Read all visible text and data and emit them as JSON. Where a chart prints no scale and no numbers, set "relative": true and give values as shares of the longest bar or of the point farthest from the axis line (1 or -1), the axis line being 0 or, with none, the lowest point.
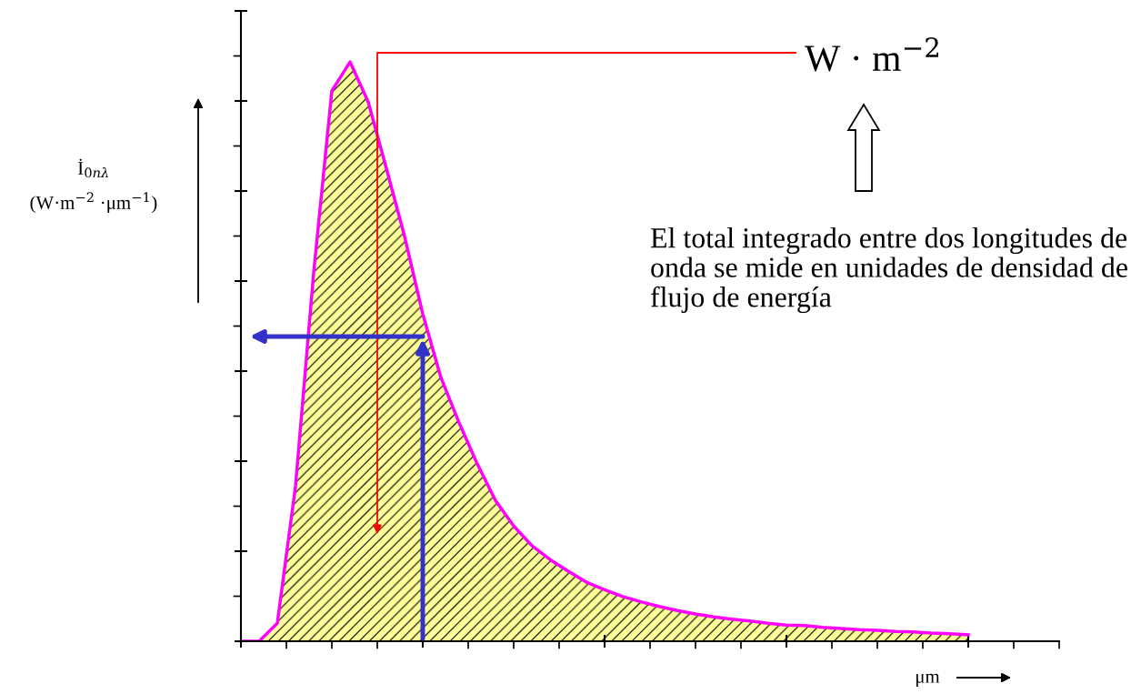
{
  "chart_data": {
    "type": "area",
    "relative": true,
    "categories": [
      null,
      null,
      null,
      null,
      null,
      null,
      null,
      null,
      null,
      null,
      null,
      null,
      null,
      null,
      null,
      null,
      null,
      null,
      null,
      null,
      null,
      null,
      null,
      null,
      null,
      null,
      null,
      null,
      null,
      null,
      null,
      null,
      null,
      null,
      null,
      null,
      null,
      null,
      null,
      null,
      null
    ],
    "series": [
      {
        "color": "#ff00ff",
        "values": [
          0,
          0,
          0.031,
          0.267,
          0.636,
          0.95,
          1.0,
          0.931,
          0.816,
          0.699,
          0.565,
          0.455,
          0.377,
          0.306,
          0.243,
          0.199,
          0.165,
          0.141,
          0.121,
          0.102,
          0.089,
          0.077,
          0.068,
          0.06,
          0.053,
          0.047,
          0.042,
          0.038,
          0.035,
          0.031,
          0.028,
          0.027,
          0.024,
          0.022,
          0.02,
          0.019,
          0.017,
          0.016,
          0.014,
          0.013,
          0.011
        ]
      }
    ],
    "xlabel": "μm",
    "ylabel": "İ$_{0nλ}$\n(W·m$^{−2}$ ·μm$^{−1}$)",
    "annotations": [
      "W · m$^{−2}$",
      "El total integrado entre dos longitudes de onda se mide en unidades de densidad de flujo de energía"
    ],
    "grid": false,
    "legend": false
  }
}
